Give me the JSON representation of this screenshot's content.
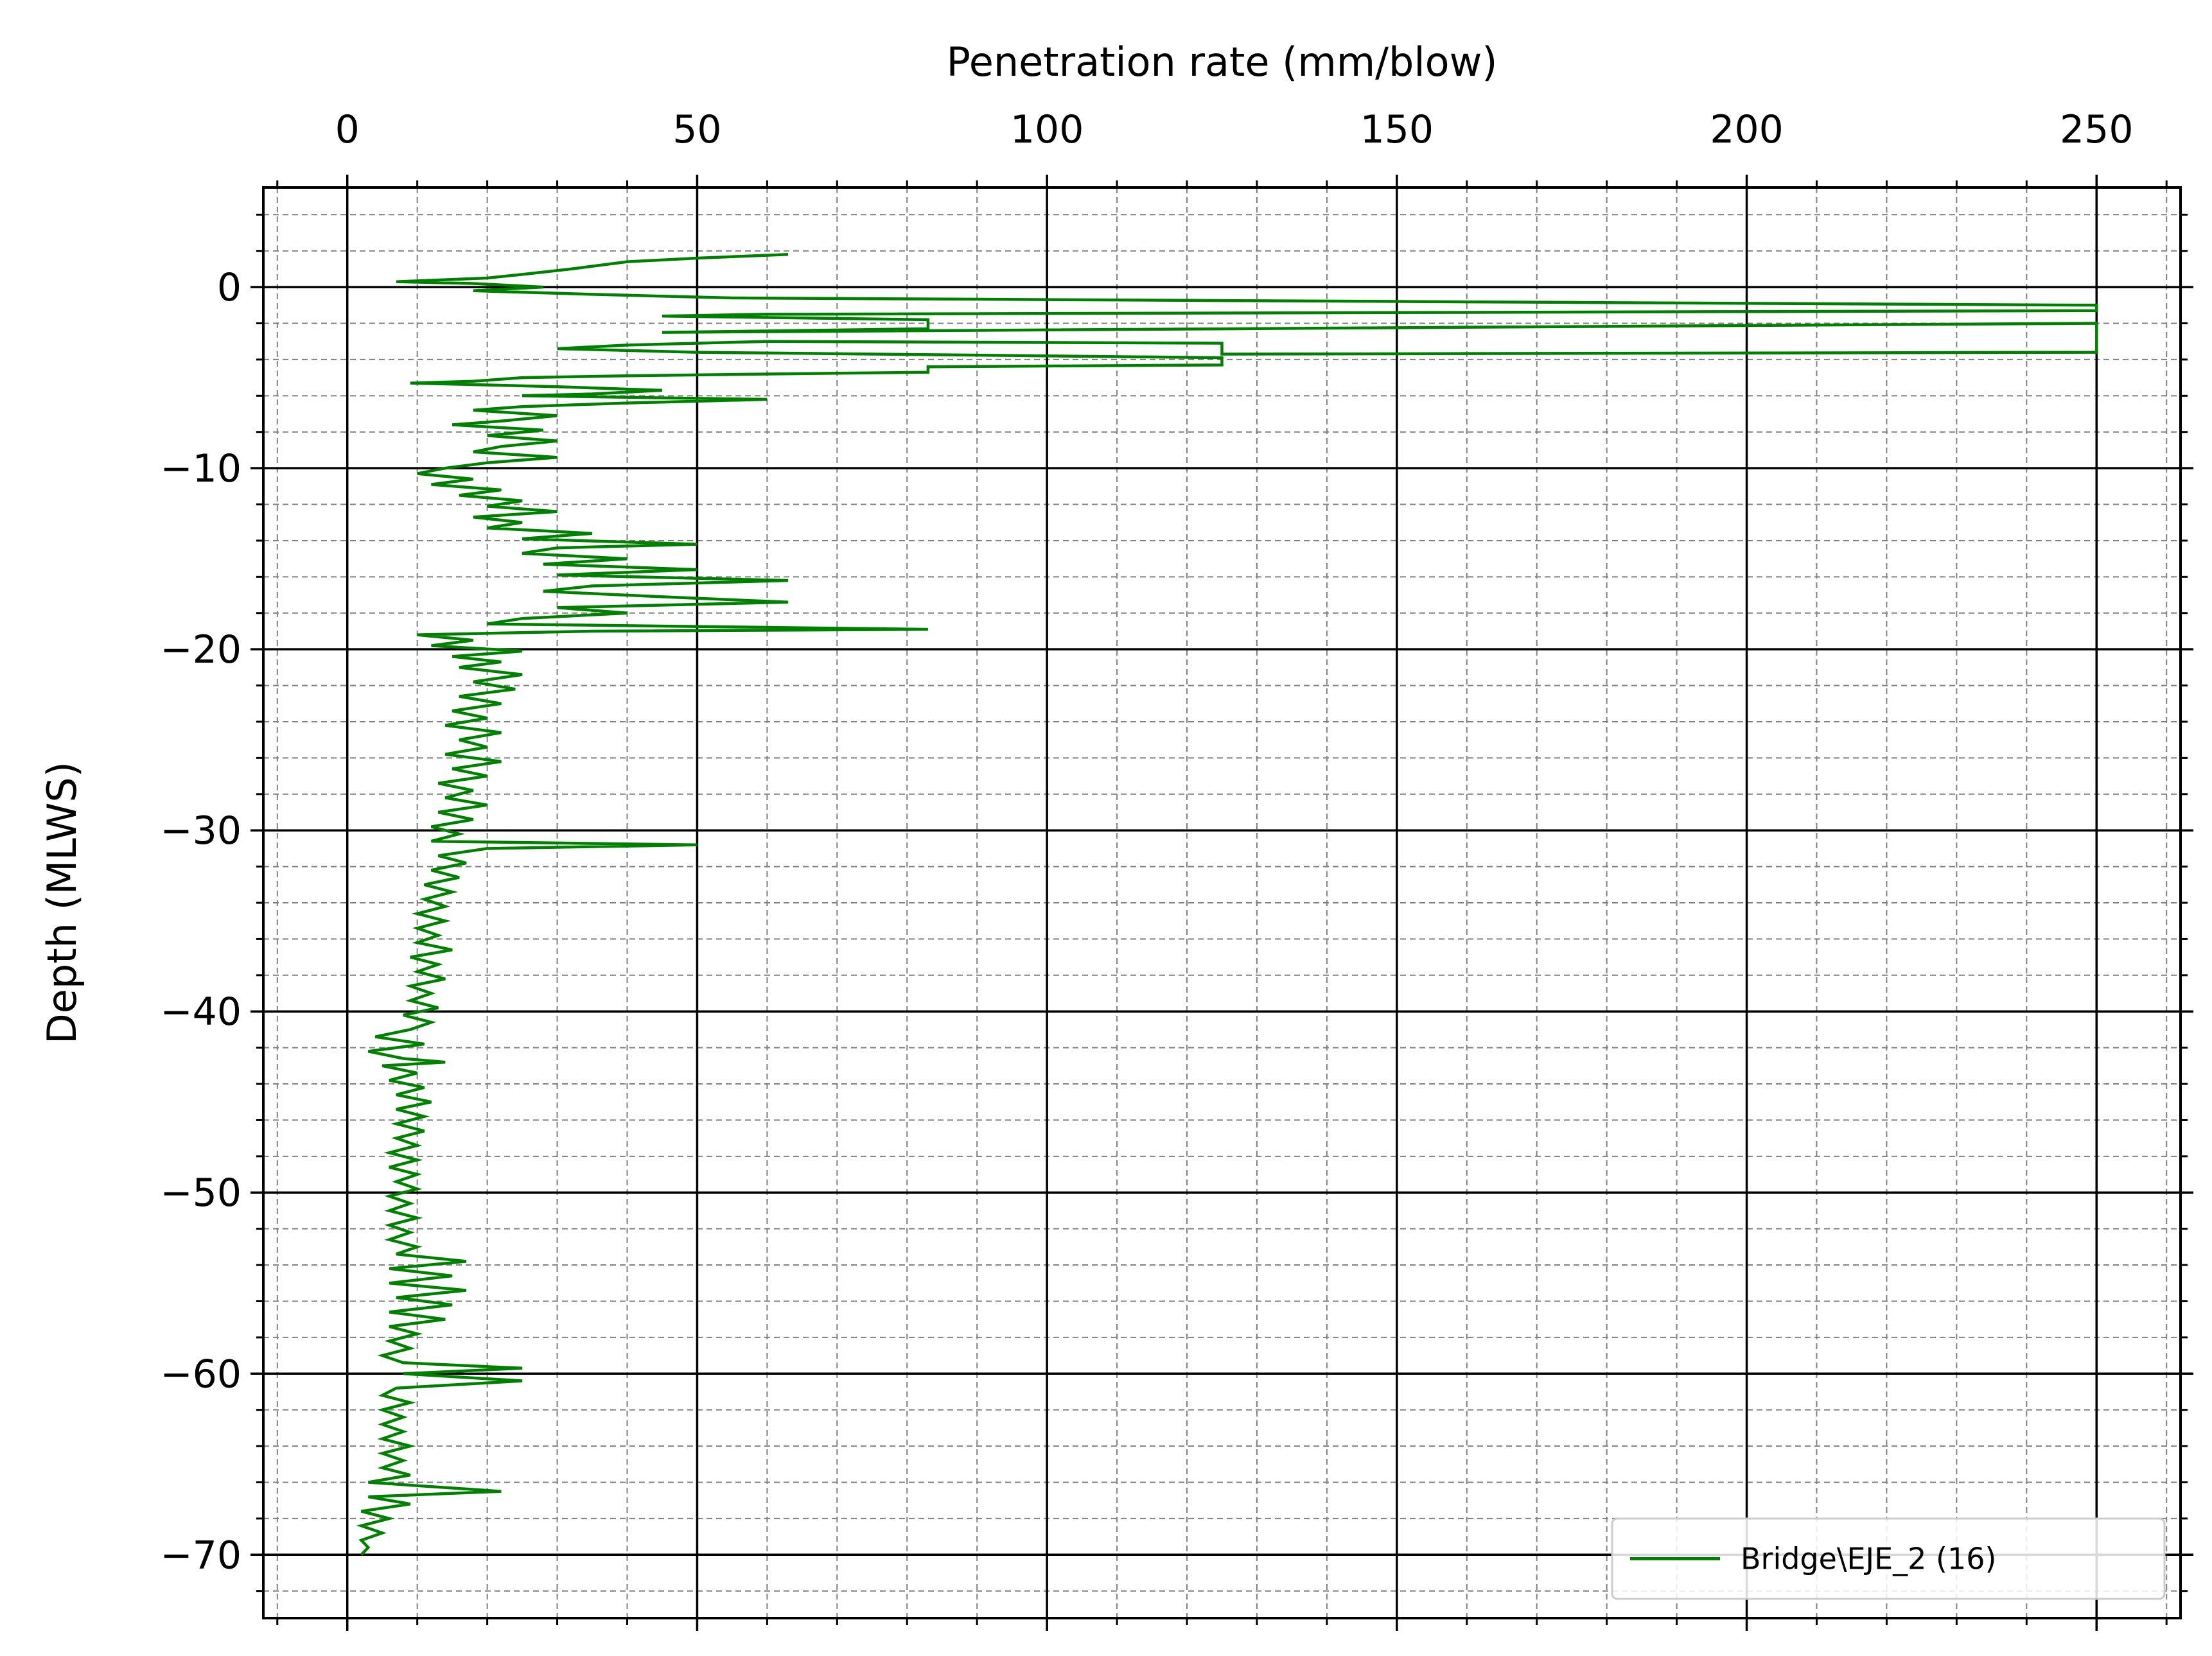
{
  "chart_data": {
    "type": "line",
    "title": "",
    "xlabel": "Penetration rate (mm/blow)",
    "ylabel": "Depth (MLWS)",
    "xlim": [
      -12,
      262
    ],
    "ylim": [
      -73.5,
      5.5
    ],
    "x_axis_position": "top",
    "x_major_ticks": [
      0,
      50,
      100,
      150,
      200,
      250
    ],
    "y_major_ticks": [
      0,
      -10,
      -20,
      -30,
      -40,
      -50,
      -60,
      -70
    ],
    "x_tick_labels": [
      "0",
      "50",
      "100",
      "150",
      "200",
      "250"
    ],
    "y_tick_labels": [
      "0",
      "−10",
      "−20",
      "−30",
      "−40",
      "−50",
      "−60",
      "−70"
    ],
    "x_minor_step": 10,
    "y_minor_step": 2,
    "grid": "on (major solid, minor dashed)",
    "legend_position": "bottom-right",
    "series": [
      {
        "name": "Bridge\\EJE_2 (16)",
        "color": "#008000",
        "points": [
          [
            63,
            1.8
          ],
          [
            50,
            1.6
          ],
          [
            40,
            1.4
          ],
          [
            32,
            1.0
          ],
          [
            25,
            0.7
          ],
          [
            20,
            0.5
          ],
          [
            7,
            0.3
          ],
          [
            18,
            0.2
          ],
          [
            28,
            0.0
          ],
          [
            18,
            -0.2
          ],
          [
            35,
            -0.4
          ],
          [
            55,
            -0.6
          ],
          [
            250,
            -1.0
          ],
          [
            250,
            -1.3
          ],
          [
            60,
            -1.5
          ],
          [
            45,
            -1.6
          ],
          [
            83,
            -1.8
          ],
          [
            83,
            -2.3
          ],
          [
            45,
            -2.5
          ],
          [
            250,
            -2.0
          ],
          [
            250,
            -3.6
          ],
          [
            125,
            -3.7
          ],
          [
            125,
            -3.1
          ],
          [
            60,
            -3.0
          ],
          [
            40,
            -3.2
          ],
          [
            30,
            -3.4
          ],
          [
            50,
            -3.6
          ],
          [
            125,
            -3.9
          ],
          [
            125,
            -4.3
          ],
          [
            83,
            -4.4
          ],
          [
            83,
            -4.7
          ],
          [
            60,
            -4.8
          ],
          [
            40,
            -4.9
          ],
          [
            25,
            -5.0
          ],
          [
            18,
            -5.2
          ],
          [
            9,
            -5.3
          ],
          [
            30,
            -5.5
          ],
          [
            45,
            -5.7
          ],
          [
            35,
            -5.9
          ],
          [
            25,
            -6.0
          ],
          [
            60,
            -6.2
          ],
          [
            40,
            -6.4
          ],
          [
            25,
            -6.6
          ],
          [
            18,
            -6.8
          ],
          [
            30,
            -7.1
          ],
          [
            22,
            -7.4
          ],
          [
            15,
            -7.6
          ],
          [
            28,
            -7.9
          ],
          [
            20,
            -8.2
          ],
          [
            30,
            -8.5
          ],
          [
            22,
            -8.8
          ],
          [
            18,
            -9.1
          ],
          [
            30,
            -9.4
          ],
          [
            20,
            -9.7
          ],
          [
            14,
            -10.0
          ],
          [
            10,
            -10.3
          ],
          [
            18,
            -10.6
          ],
          [
            12,
            -10.9
          ],
          [
            22,
            -11.2
          ],
          [
            16,
            -11.5
          ],
          [
            25,
            -11.8
          ],
          [
            20,
            -12.1
          ],
          [
            30,
            -12.4
          ],
          [
            18,
            -12.7
          ],
          [
            25,
            -13.0
          ],
          [
            20,
            -13.3
          ],
          [
            35,
            -13.6
          ],
          [
            25,
            -13.9
          ],
          [
            50,
            -14.2
          ],
          [
            30,
            -14.4
          ],
          [
            25,
            -14.7
          ],
          [
            40,
            -15.0
          ],
          [
            28,
            -15.3
          ],
          [
            50,
            -15.6
          ],
          [
            30,
            -15.9
          ],
          [
            63,
            -16.2
          ],
          [
            35,
            -16.5
          ],
          [
            28,
            -16.8
          ],
          [
            45,
            -17.1
          ],
          [
            63,
            -17.4
          ],
          [
            30,
            -17.7
          ],
          [
            40,
            -18.0
          ],
          [
            25,
            -18.3
          ],
          [
            20,
            -18.6
          ],
          [
            83,
            -18.9
          ],
          [
            35,
            -19.0
          ],
          [
            10,
            -19.2
          ],
          [
            18,
            -19.5
          ],
          [
            12,
            -19.8
          ],
          [
            25,
            -20.1
          ],
          [
            15,
            -20.4
          ],
          [
            22,
            -20.7
          ],
          [
            16,
            -21.0
          ],
          [
            25,
            -21.4
          ],
          [
            18,
            -21.8
          ],
          [
            24,
            -22.2
          ],
          [
            16,
            -22.6
          ],
          [
            22,
            -23.0
          ],
          [
            15,
            -23.4
          ],
          [
            20,
            -23.8
          ],
          [
            14,
            -24.2
          ],
          [
            22,
            -24.6
          ],
          [
            16,
            -25.0
          ],
          [
            20,
            -25.4
          ],
          [
            14,
            -25.8
          ],
          [
            22,
            -26.2
          ],
          [
            15,
            -26.6
          ],
          [
            20,
            -27.0
          ],
          [
            13,
            -27.4
          ],
          [
            18,
            -27.8
          ],
          [
            14,
            -28.2
          ],
          [
            20,
            -28.6
          ],
          [
            13,
            -29.0
          ],
          [
            18,
            -29.4
          ],
          [
            12,
            -29.8
          ],
          [
            16,
            -30.2
          ],
          [
            12,
            -30.6
          ],
          [
            50,
            -30.8
          ],
          [
            20,
            -31.0
          ],
          [
            13,
            -31.4
          ],
          [
            17,
            -31.8
          ],
          [
            12,
            -32.2
          ],
          [
            16,
            -32.6
          ],
          [
            11,
            -33.0
          ],
          [
            15,
            -33.4
          ],
          [
            11,
            -33.8
          ],
          [
            14,
            -34.2
          ],
          [
            10,
            -34.6
          ],
          [
            14,
            -35.0
          ],
          [
            10,
            -35.4
          ],
          [
            13,
            -35.8
          ],
          [
            10,
            -36.2
          ],
          [
            15,
            -36.6
          ],
          [
            9,
            -37.0
          ],
          [
            13,
            -37.4
          ],
          [
            10,
            -37.8
          ],
          [
            14,
            -38.2
          ],
          [
            9,
            -38.6
          ],
          [
            12,
            -39.0
          ],
          [
            9,
            -39.4
          ],
          [
            13,
            -39.8
          ],
          [
            8,
            -40.2
          ],
          [
            12,
            -40.6
          ],
          [
            9,
            -41.0
          ],
          [
            4,
            -41.4
          ],
          [
            11,
            -41.8
          ],
          [
            3,
            -42.2
          ],
          [
            8,
            -42.6
          ],
          [
            14,
            -42.8
          ],
          [
            5,
            -43.0
          ],
          [
            10,
            -43.4
          ],
          [
            6,
            -43.8
          ],
          [
            11,
            -44.2
          ],
          [
            7,
            -44.6
          ],
          [
            12,
            -45.0
          ],
          [
            7,
            -45.4
          ],
          [
            11,
            -45.8
          ],
          [
            7,
            -46.2
          ],
          [
            11,
            -46.6
          ],
          [
            7,
            -47.0
          ],
          [
            10,
            -47.4
          ],
          [
            6,
            -47.8
          ],
          [
            10,
            -48.2
          ],
          [
            6,
            -48.6
          ],
          [
            10,
            -49.0
          ],
          [
            7,
            -49.4
          ],
          [
            10,
            -49.8
          ],
          [
            6,
            -50.2
          ],
          [
            9,
            -50.6
          ],
          [
            6,
            -51.0
          ],
          [
            10,
            -51.4
          ],
          [
            6,
            -51.8
          ],
          [
            9,
            -52.2
          ],
          [
            6,
            -52.6
          ],
          [
            10,
            -53.0
          ],
          [
            7,
            -53.4
          ],
          [
            17,
            -53.8
          ],
          [
            6,
            -54.2
          ],
          [
            15,
            -54.6
          ],
          [
            6,
            -55.0
          ],
          [
            17,
            -55.4
          ],
          [
            7,
            -55.8
          ],
          [
            15,
            -56.2
          ],
          [
            6,
            -56.6
          ],
          [
            14,
            -57.0
          ],
          [
            6,
            -57.4
          ],
          [
            10,
            -57.8
          ],
          [
            6,
            -58.2
          ],
          [
            9,
            -58.6
          ],
          [
            5,
            -59.0
          ],
          [
            8,
            -59.4
          ],
          [
            25,
            -59.7
          ],
          [
            8,
            -60.0
          ],
          [
            25,
            -60.4
          ],
          [
            7,
            -60.8
          ],
          [
            5,
            -61.2
          ],
          [
            9,
            -61.6
          ],
          [
            5,
            -62.0
          ],
          [
            8,
            -62.4
          ],
          [
            5,
            -62.8
          ],
          [
            8,
            -63.2
          ],
          [
            5,
            -63.6
          ],
          [
            9,
            -64.0
          ],
          [
            5,
            -64.4
          ],
          [
            8,
            -64.8
          ],
          [
            5,
            -65.2
          ],
          [
            9,
            -65.6
          ],
          [
            3,
            -66.0
          ],
          [
            22,
            -66.5
          ],
          [
            3,
            -66.8
          ],
          [
            9,
            -67.2
          ],
          [
            2,
            -67.6
          ],
          [
            6,
            -68.0
          ],
          [
            2,
            -68.4
          ],
          [
            5,
            -68.8
          ],
          [
            2,
            -69.2
          ],
          [
            3,
            -69.6
          ],
          [
            2,
            -70.0
          ]
        ]
      }
    ]
  }
}
